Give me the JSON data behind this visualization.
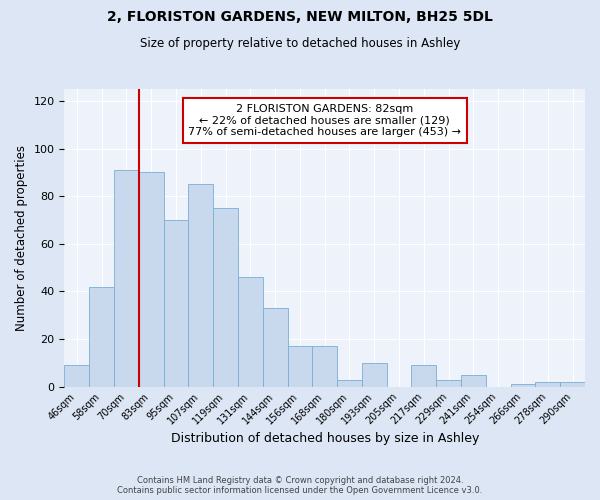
{
  "title": "2, FLORISTON GARDENS, NEW MILTON, BH25 5DL",
  "subtitle": "Size of property relative to detached houses in Ashley",
  "xlabel": "Distribution of detached houses by size in Ashley",
  "ylabel": "Number of detached properties",
  "bin_labels": [
    "46sqm",
    "58sqm",
    "70sqm",
    "83sqm",
    "95sqm",
    "107sqm",
    "119sqm",
    "131sqm",
    "144sqm",
    "156sqm",
    "168sqm",
    "180sqm",
    "193sqm",
    "205sqm",
    "217sqm",
    "229sqm",
    "241sqm",
    "254sqm",
    "266sqm",
    "278sqm",
    "290sqm"
  ],
  "bar_heights": [
    9,
    42,
    91,
    90,
    70,
    85,
    75,
    46,
    33,
    17,
    17,
    3,
    10,
    0,
    9,
    3,
    5,
    0,
    1,
    2,
    2
  ],
  "bar_color": "#c8d9ee",
  "bar_edge_color": "#7aafd4",
  "vline_color": "#cc0000",
  "ylim": [
    0,
    125
  ],
  "yticks": [
    0,
    20,
    40,
    60,
    80,
    100,
    120
  ],
  "annotation_title": "2 FLORISTON GARDENS: 82sqm",
  "annotation_line1": "← 22% of detached houses are smaller (129)",
  "annotation_line2": "77% of semi-detached houses are larger (453) →",
  "annotation_box_color": "#cc0000",
  "footer_line1": "Contains HM Land Registry data © Crown copyright and database right 2024.",
  "footer_line2": "Contains public sector information licensed under the Open Government Licence v3.0.",
  "background_color": "#dce6f5",
  "plot_bg_color": "#edf2fb"
}
